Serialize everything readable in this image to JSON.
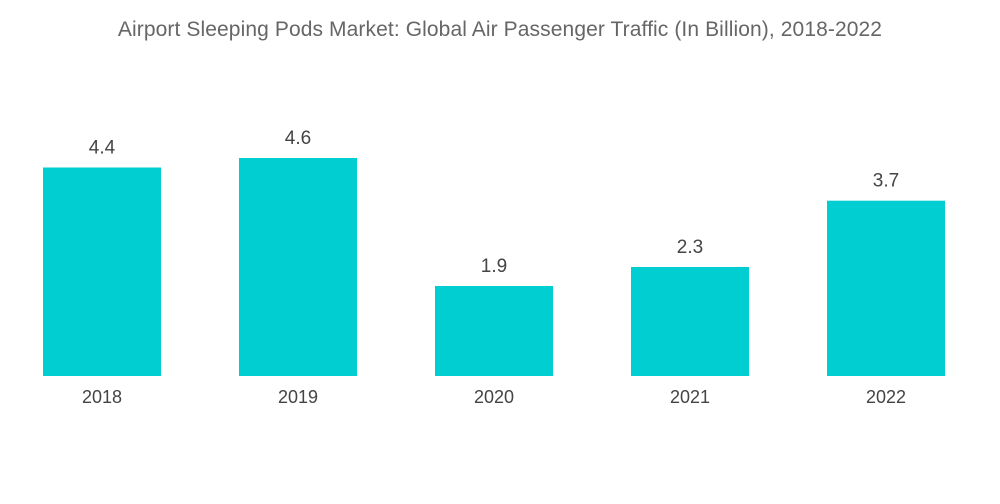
{
  "chart_data": {
    "type": "bar",
    "title": "Airport Sleeping Pods Market: Global Air Passenger Traffic (In Billion), 2018-2022",
    "categories": [
      "2018",
      "2019",
      "2020",
      "2021",
      "2022"
    ],
    "values": [
      4.4,
      4.6,
      1.9,
      2.3,
      3.7
    ],
    "value_labels": [
      "4.4",
      "4.6",
      "1.9",
      "2.3",
      "3.7"
    ],
    "xlabel": "",
    "ylabel": "",
    "ylim": [
      0,
      4.6
    ],
    "grid": false,
    "bar_color": "#00CED1"
  }
}
